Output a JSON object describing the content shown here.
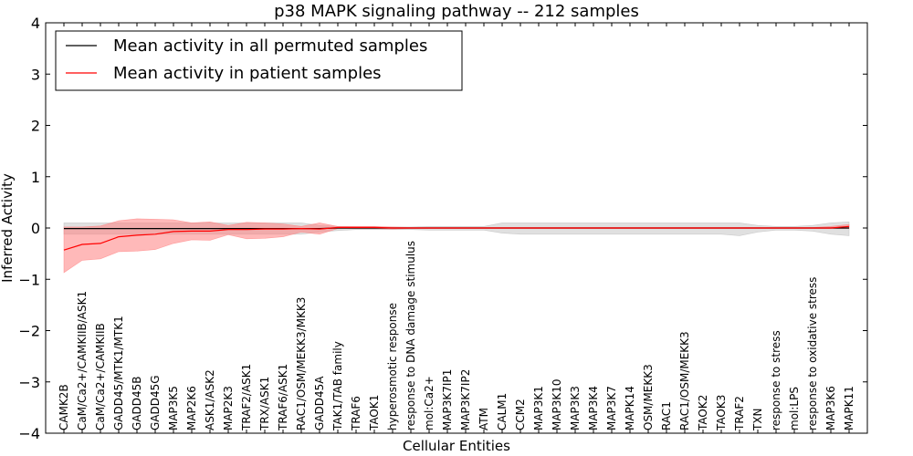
{
  "chart_data": {
    "type": "line",
    "title": "p38 MAPK signaling pathway -- 212 samples",
    "xlabel": "Cellular Entities",
    "ylabel": "Inferred Activity",
    "ylim": [
      -4,
      4
    ],
    "yticks": [
      -4,
      -3,
      -2,
      -1,
      0,
      1,
      2,
      3,
      4
    ],
    "ytick_labels": [
      "−4",
      "−3",
      "−2",
      "−1",
      "0",
      "1",
      "2",
      "3",
      "4"
    ],
    "grid": false,
    "legend_position": "top-left",
    "categories": [
      "CAMK2B",
      "CaM/Ca2+/CAMKIIB/ASK1",
      "CaM/Ca2+/CAMKIIB",
      "GADD45/MTK1/MTK1",
      "GADD45B",
      "GADD45G",
      "MAP3K5",
      "MAP2K6",
      "ASK1/ASK2",
      "MAP2K3",
      "TRAF2/ASK1",
      "TRX/ASK1",
      "TRAF6/ASK1",
      "RAC1/OSM/MEKK3/MKK3",
      "GADD45A",
      "TAK1/TAB family",
      "TRAF6",
      "TAOK1",
      "hyperosmotic response",
      "response to DNA damage stimulus",
      "mol:Ca2+",
      "MAP3K7IP1",
      "MAP3K7IP2",
      "ATM",
      "CALM1",
      "CCM2",
      "MAP3K1",
      "MAP3K10",
      "MAP3K3",
      "MAP3K4",
      "MAP3K7",
      "MAPK14",
      "OSM/MEKK3",
      "RAC1",
      "RAC1/OSM/MEKK3",
      "TAOK2",
      "TAOK3",
      "TRAF2",
      "TXN",
      "response to stress",
      "mol:LPS",
      "response to oxidative stress",
      "MAP3K6",
      "MAPK11"
    ],
    "series": [
      {
        "name": "Mean activity in all permuted samples",
        "color": "#000000",
        "band_color": "#bbbbbb",
        "values": [
          -0.01,
          -0.01,
          -0.01,
          -0.01,
          -0.01,
          -0.01,
          -0.01,
          -0.01,
          -0.01,
          -0.01,
          -0.01,
          -0.01,
          -0.01,
          -0.01,
          -0.01,
          0.0,
          0.0,
          0.0,
          0.0,
          0.0,
          0.0,
          0.0,
          0.0,
          0.0,
          0.0,
          0.0,
          0.0,
          0.0,
          0.0,
          0.0,
          0.0,
          0.0,
          0.0,
          0.0,
          0.0,
          0.0,
          0.0,
          0.0,
          0.0,
          0.0,
          0.0,
          0.0,
          0.0,
          0.0
        ],
        "upper": [
          0.1,
          0.1,
          0.1,
          0.1,
          0.1,
          0.1,
          0.1,
          0.1,
          0.1,
          0.1,
          0.1,
          0.1,
          0.1,
          0.1,
          0.05,
          0.03,
          0.02,
          0.02,
          0.02,
          0.02,
          0.03,
          0.03,
          0.03,
          0.03,
          0.1,
          0.1,
          0.1,
          0.1,
          0.1,
          0.1,
          0.1,
          0.1,
          0.1,
          0.1,
          0.1,
          0.1,
          0.1,
          0.1,
          0.05,
          0.03,
          0.03,
          0.05,
          0.1,
          0.12
        ],
        "lower": [
          -0.12,
          -0.12,
          -0.12,
          -0.12,
          -0.12,
          -0.12,
          -0.12,
          -0.12,
          -0.12,
          -0.12,
          -0.12,
          -0.12,
          -0.12,
          -0.12,
          -0.08,
          -0.05,
          -0.03,
          -0.03,
          -0.03,
          -0.03,
          -0.04,
          -0.04,
          -0.04,
          -0.04,
          -0.1,
          -0.12,
          -0.12,
          -0.12,
          -0.12,
          -0.12,
          -0.12,
          -0.12,
          -0.12,
          -0.12,
          -0.12,
          -0.12,
          -0.12,
          -0.15,
          -0.08,
          -0.04,
          -0.04,
          -0.06,
          -0.12,
          -0.15
        ]
      },
      {
        "name": "Mean activity in patient samples",
        "color": "#ff0000",
        "band_color": "#ff8080",
        "values": [
          -0.43,
          -0.32,
          -0.3,
          -0.17,
          -0.14,
          -0.12,
          -0.07,
          -0.06,
          -0.06,
          -0.03,
          -0.03,
          -0.02,
          -0.02,
          -0.01,
          -0.02,
          0.01,
          0.01,
          0.01,
          0.0,
          0.0,
          0.0,
          0.0,
          0.0,
          0.0,
          0.0,
          0.0,
          0.0,
          0.0,
          0.0,
          0.0,
          0.0,
          0.0,
          0.0,
          0.0,
          0.0,
          0.0,
          0.0,
          0.0,
          0.0,
          0.0,
          0.0,
          0.0,
          0.0,
          0.03
        ],
        "upper": [
          0.02,
          0.02,
          0.04,
          0.14,
          0.18,
          0.17,
          0.16,
          0.1,
          0.12,
          0.05,
          0.11,
          0.1,
          0.08,
          0.03,
          0.1,
          0.03,
          0.03,
          0.03,
          0.02,
          0.01,
          0.01,
          0.01,
          0.01,
          0.01,
          0.01,
          0.01,
          0.01,
          0.01,
          0.01,
          0.01,
          0.01,
          0.01,
          0.01,
          0.01,
          0.01,
          0.01,
          0.01,
          0.01,
          0.01,
          0.01,
          0.01,
          0.01,
          0.03,
          0.07
        ],
        "lower": [
          -0.87,
          -0.63,
          -0.6,
          -0.46,
          -0.45,
          -0.42,
          -0.3,
          -0.23,
          -0.24,
          -0.13,
          -0.21,
          -0.2,
          -0.17,
          -0.08,
          -0.12,
          -0.01,
          -0.01,
          -0.01,
          -0.02,
          -0.01,
          -0.01,
          -0.01,
          -0.01,
          -0.01,
          -0.01,
          -0.01,
          -0.01,
          -0.01,
          -0.01,
          -0.01,
          -0.01,
          -0.01,
          -0.01,
          -0.01,
          -0.01,
          -0.01,
          -0.01,
          -0.01,
          -0.01,
          -0.01,
          -0.01,
          -0.01,
          -0.01,
          -0.01
        ]
      }
    ]
  }
}
